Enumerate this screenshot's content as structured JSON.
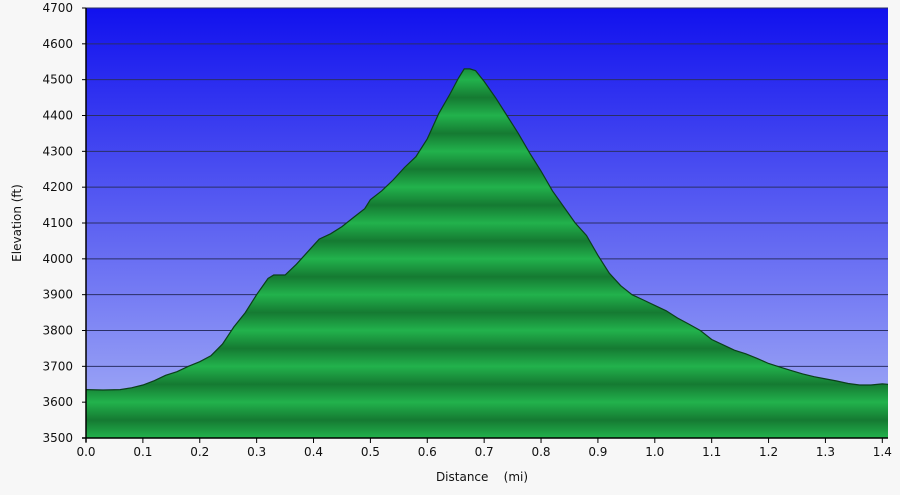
{
  "chart_data": {
    "type": "area",
    "title": "",
    "xlabel": "Distance    (mi)",
    "ylabel": "Elevation (ft)",
    "xlim": [
      0,
      1.41
    ],
    "ylim": [
      3500,
      4700
    ],
    "x_ticks": [
      "0.0",
      "0.1",
      "0.2",
      "0.3",
      "0.4",
      "0.5",
      "0.6",
      "0.7",
      "0.8",
      "0.9",
      "1.0",
      "1.1",
      "1.2",
      "1.3",
      "1.4"
    ],
    "y_ticks": [
      "3500",
      "3600",
      "3700",
      "3800",
      "3900",
      "4000",
      "4100",
      "4200",
      "4300",
      "4400",
      "4500",
      "4600",
      "4700"
    ],
    "grid": true,
    "legend": "none",
    "colors": {
      "plot_bg_top": "#1111ee",
      "plot_bg_bottom": "#a8b2f6",
      "area_light": "#22b24c",
      "area_dark": "#157a32",
      "area_outline": "#0b3f1a",
      "gridline": "#2a2f66"
    },
    "series": [
      {
        "x": [
          0,
          0.03,
          0.06,
          0.08,
          0.1,
          0.12,
          0.14,
          0.16,
          0.18,
          0.2,
          0.22,
          0.24,
          0.26,
          0.28,
          0.3,
          0.32,
          0.33,
          0.35,
          0.37,
          0.39,
          0.41,
          0.43,
          0.45,
          0.47,
          0.49,
          0.5,
          0.52,
          0.54,
          0.56,
          0.58,
          0.6,
          0.62,
          0.64,
          0.655,
          0.665,
          0.675,
          0.685,
          0.7,
          0.72,
          0.74,
          0.76,
          0.78,
          0.8,
          0.82,
          0.84,
          0.86,
          0.88,
          0.9,
          0.92,
          0.94,
          0.96,
          0.98,
          1.0,
          1.02,
          1.04,
          1.06,
          1.08,
          1.1,
          1.12,
          1.14,
          1.16,
          1.18,
          1.2,
          1.22,
          1.24,
          1.26,
          1.28,
          1.3,
          1.32,
          1.34,
          1.36,
          1.38,
          1.4,
          1.41
        ],
        "values": [
          3635,
          3634,
          3635,
          3640,
          3648,
          3660,
          3675,
          3685,
          3700,
          3713,
          3730,
          3762,
          3810,
          3850,
          3900,
          3945,
          3955,
          3955,
          3985,
          4020,
          4055,
          4070,
          4090,
          4115,
          4140,
          4165,
          4190,
          4220,
          4255,
          4285,
          4335,
          4405,
          4460,
          4505,
          4530,
          4530,
          4525,
          4495,
          4450,
          4400,
          4350,
          4295,
          4245,
          4190,
          4145,
          4100,
          4065,
          4010,
          3960,
          3925,
          3900,
          3885,
          3870,
          3855,
          3835,
          3818,
          3800,
          3775,
          3760,
          3745,
          3735,
          3722,
          3708,
          3698,
          3688,
          3679,
          3671,
          3665,
          3659,
          3652,
          3648,
          3648,
          3651,
          3650
        ]
      }
    ]
  }
}
